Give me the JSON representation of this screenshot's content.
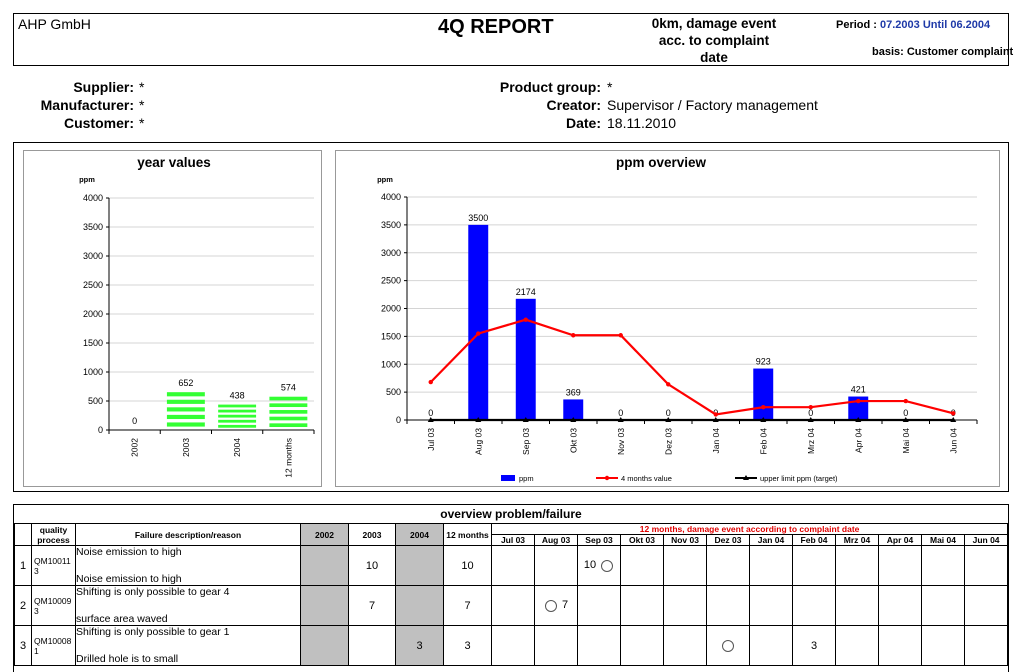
{
  "header": {
    "company": "AHP GmbH",
    "title": "4Q REPORT",
    "damage_lines": [
      "0km, damage event",
      "acc. to complaint",
      "date"
    ],
    "period_label": "Period :",
    "period_value": "07.2003 Until 06.2004",
    "basis_label": "basis:",
    "basis_value": "Customer complaint"
  },
  "info": {
    "supplier_label": "Supplier:",
    "supplier_value": "*",
    "manufacturer_label": "Manufacturer:",
    "manufacturer_value": "*",
    "customer_label": "Customer:",
    "customer_value": "*",
    "product_group_label": "Product group:",
    "product_group_value": "*",
    "creator_label": "Creator:",
    "creator_value": "Supervisor / Factory management",
    "date_label": "Date:",
    "date_value": "18.11.2010"
  },
  "chart_data": [
    {
      "type": "bar",
      "title": "year values",
      "ylabel": "ppm",
      "ylim": [
        0,
        4000
      ],
      "yticks": [
        0,
        500,
        1000,
        1500,
        2000,
        2500,
        3000,
        3500,
        4000
      ],
      "categories": [
        "2002",
        "2003",
        "2004",
        "12 months"
      ],
      "values": [
        0,
        652,
        438,
        574
      ],
      "bar_color": "#33ff33",
      "grid": true
    },
    {
      "type": "bar",
      "title": "ppm overview",
      "ylabel": "ppm",
      "ylim": [
        0,
        4000
      ],
      "yticks": [
        0,
        500,
        1000,
        1500,
        2000,
        2500,
        3000,
        3500,
        4000
      ],
      "categories": [
        "Jul 03",
        "Aug 03",
        "Sep 03",
        "Okt 03",
        "Nov 03",
        "Dez 03",
        "Jan 04",
        "Feb 04",
        "Mrz 04",
        "Apr 04",
        "Mai 04",
        "Jun 04"
      ],
      "series": [
        {
          "name": "ppm",
          "type": "bar",
          "color": "#0000ff",
          "values": [
            0,
            3500,
            2174,
            369,
            0,
            0,
            0,
            923,
            0,
            421,
            0,
            0
          ]
        },
        {
          "name": "4 months value",
          "type": "line",
          "color": "#ff0000",
          "values": [
            680,
            1550,
            1800,
            1520,
            1520,
            640,
            100,
            230,
            230,
            340,
            340,
            120
          ]
        },
        {
          "name": "upper limit ppm (target)",
          "type": "line",
          "color": "#000000",
          "values": [
            0,
            0,
            0,
            0,
            0,
            0,
            0,
            0,
            0,
            0,
            0,
            0
          ]
        }
      ],
      "legend_position": "bottom",
      "grid": true
    }
  ],
  "failure": {
    "title": "overview problem/failure",
    "months_title": "12 months, damage event according to complaint date",
    "col_quality": "quality process",
    "col_desc": "Failure description/reason",
    "col_2002": "2002",
    "col_2003": "2003",
    "col_2004": "2004",
    "col_12m": "12 months",
    "months": [
      "Jul 03",
      "Aug 03",
      "Sep 03",
      "Okt 03",
      "Nov 03",
      "Dez 03",
      "Jan 04",
      "Feb 04",
      "Mrz 04",
      "Apr 04",
      "Mai 04",
      "Jun 04"
    ],
    "rows": [
      {
        "no": "1",
        "qp": "QM10011 3",
        "desc": "Noise emission to high",
        "reason": "Noise emission to high",
        "y2002": "",
        "y2003": "10",
        "y2004": "",
        "m12": "10",
        "cells": [
          "",
          "",
          "10 ○",
          "",
          "",
          "",
          "",
          "",
          "",
          "",
          "",
          ""
        ]
      },
      {
        "no": "2",
        "qp": "QM10009 3",
        "desc": "Shifting is only possible to gear 4",
        "reason": "surface area waved",
        "y2002": "",
        "y2003": "7",
        "y2004": "",
        "m12": "7",
        "cells": [
          "",
          "○ 7",
          "",
          "",
          "",
          "",
          "",
          "",
          "",
          "",
          "",
          ""
        ]
      },
      {
        "no": "3",
        "qp": "QM10008 1",
        "desc": "Shifting is only possible to gear 1",
        "reason": "Drilled hole is to small",
        "y2002": "",
        "y2003": "",
        "y2004": "3",
        "m12": "3",
        "cells": [
          "",
          "",
          "",
          "",
          "",
          "○",
          "",
          "3",
          "",
          "",
          "",
          ""
        ]
      }
    ]
  }
}
